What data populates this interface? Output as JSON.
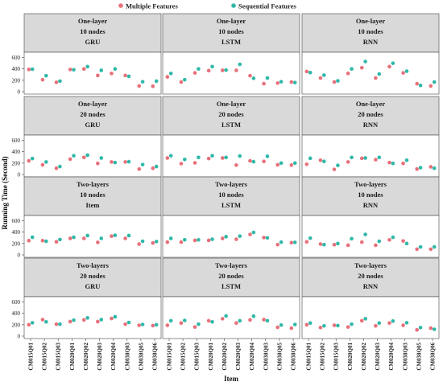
{
  "chart_data": {
    "type": "scatter",
    "legend": {
      "placement": "top",
      "entries": [
        {
          "name": "Multiple Features",
          "color": "#e8707a"
        },
        {
          "name": "Sequential Features",
          "color": "#2fb8a8"
        }
      ]
    },
    "xlabel": "Item",
    "ylabel": "Running Time (Second)",
    "ylim": [
      0,
      650
    ],
    "yticks": [
      0,
      200,
      400,
      600
    ],
    "grid": false,
    "categories": [
      "CM015Q01",
      "CM015Q02",
      "CM015Q03",
      "CM020Q01",
      "CM020Q02",
      "CM020Q03",
      "CM020Q04",
      "CM038Q03",
      "CM038Q05",
      "CM038Q06"
    ],
    "panels": [
      {
        "strip": [
          "One-layer",
          "10 nodes",
          "GRU"
        ],
        "series": [
          {
            "name": "Multiple Features",
            "values": [
              390,
              210,
              165,
              390,
              400,
              285,
              320,
              285,
              100,
              95
            ]
          },
          {
            "name": "Sequential Features",
            "values": [
              395,
              280,
              185,
              385,
              440,
              375,
              400,
              270,
              175,
              185
            ]
          }
        ]
      },
      {
        "strip": [
          "One-layer",
          "10 nodes",
          "LSTM"
        ],
        "series": [
          {
            "name": "Multiple Features",
            "values": [
              260,
              170,
              330,
              370,
              375,
              375,
              280,
              140,
              150,
              170
            ]
          },
          {
            "name": "Sequential Features",
            "values": [
              320,
              210,
              400,
              440,
              380,
              480,
              235,
              240,
              175,
              160
            ]
          }
        ]
      },
      {
        "strip": [
          "One-layer",
          "10 nodes",
          "RNN"
        ],
        "series": [
          {
            "name": "Multiple Features",
            "values": [
              355,
              240,
              170,
              320,
              420,
              240,
              440,
              330,
              140,
              100
            ]
          },
          {
            "name": "Sequential Features",
            "values": [
              335,
              290,
              190,
              400,
              530,
              310,
              500,
              360,
              110,
              170
            ]
          }
        ]
      },
      {
        "strip": [
          "One-layer",
          "20 nodes",
          "GRU"
        ],
        "series": [
          {
            "name": "Multiple Features",
            "values": [
              240,
              170,
              110,
              270,
              300,
              195,
              220,
              220,
              95,
              110
            ]
          },
          {
            "name": "Sequential Features",
            "values": [
              280,
              220,
              140,
              330,
              340,
              290,
              210,
              225,
              175,
              140
            ]
          }
        ]
      },
      {
        "strip": [
          "One-layer",
          "20 nodes",
          "LSTM"
        ],
        "series": [
          {
            "name": "Multiple Features",
            "values": [
              290,
              190,
              205,
              280,
              290,
              165,
              240,
              230,
              170,
              165
            ]
          },
          {
            "name": "Sequential Features",
            "values": [
              330,
              265,
              300,
              330,
              300,
              325,
              225,
              320,
              200,
              200
            ]
          }
        ]
      },
      {
        "strip": [
          "One-layer",
          "20 nodes",
          "RNN"
        ],
        "series": [
          {
            "name": "Multiple Features",
            "values": [
              180,
              250,
              90,
              220,
              285,
              260,
              210,
              195,
              95,
              135
            ]
          },
          {
            "name": "Sequential Features",
            "values": [
              285,
              230,
              160,
              300,
              290,
              300,
              195,
              250,
              120,
              110
            ]
          }
        ]
      },
      {
        "strip": [
          "Two-layers",
          "10 nodes",
          "Item"
        ],
        "series": [
          {
            "name": "Multiple Features",
            "values": [
              250,
              250,
              230,
              290,
              290,
              220,
              330,
              290,
              190,
              210
            ]
          },
          {
            "name": "Sequential Features",
            "values": [
              310,
              240,
              270,
              310,
              340,
              290,
              345,
              340,
              240,
              235
            ]
          }
        ]
      },
      {
        "strip": [
          "Two-layers",
          "10 nodes",
          "LSTM"
        ],
        "series": [
          {
            "name": "Multiple Features",
            "values": [
              225,
              225,
              255,
              255,
              290,
              275,
              360,
              305,
              180,
              215
            ]
          },
          {
            "name": "Sequential Features",
            "values": [
              290,
              265,
              265,
              275,
              320,
              330,
              395,
              300,
              225,
              220
            ]
          }
        ]
      },
      {
        "strip": [
          "Two-layers",
          "10 nodes",
          "RNN"
        ],
        "series": [
          {
            "name": "Multiple Features",
            "values": [
              230,
              190,
              180,
              170,
              225,
              170,
              265,
              245,
              100,
              100
            ]
          },
          {
            "name": "Sequential Features",
            "values": [
              295,
              180,
              200,
              285,
              360,
              240,
              310,
              200,
              140,
              140
            ]
          }
        ]
      },
      {
        "strip": [
          "Two-layers",
          "20 nodes",
          "GRU"
        ],
        "series": [
          {
            "name": "Multiple Features",
            "values": [
              200,
              290,
              210,
              255,
              285,
              255,
              310,
              210,
              190,
              185
            ]
          },
          {
            "name": "Sequential Features",
            "values": [
              235,
              250,
              210,
              280,
              320,
              290,
              340,
              240,
              205,
              200
            ]
          }
        ]
      },
      {
        "strip": [
          "Two-layers",
          "20 nodes",
          "LSTM"
        ],
        "series": [
          {
            "name": "Multiple Features",
            "values": [
              190,
              230,
              160,
              270,
              305,
              230,
              285,
              290,
              155,
              140
            ]
          },
          {
            "name": "Sequential Features",
            "values": [
              270,
              275,
              210,
              250,
              355,
              270,
              350,
              270,
              195,
              205
            ]
          }
        ]
      },
      {
        "strip": [
          "Two-layers",
          "20 nodes",
          "RNN"
        ],
        "series": [
          {
            "name": "Multiple Features",
            "values": [
              200,
              150,
              190,
              160,
              270,
              180,
              230,
              190,
              110,
              140
            ]
          },
          {
            "name": "Sequential Features",
            "values": [
              230,
              180,
              185,
              210,
              305,
              230,
              265,
              235,
              150,
              120
            ]
          }
        ]
      }
    ]
  }
}
